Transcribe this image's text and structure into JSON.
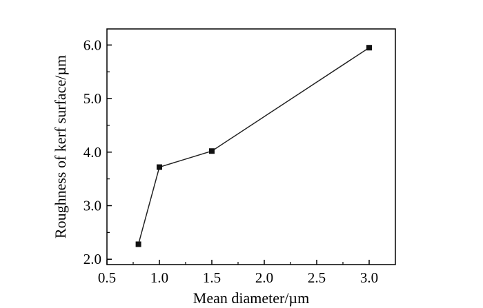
{
  "chart_data": {
    "type": "line",
    "title": "",
    "xlabel": "Mean diameter/µm",
    "ylabel": "Roughness of kerf surface/µm",
    "xlim": [
      0.5,
      3.25
    ],
    "ylim": [
      1.9,
      6.3
    ],
    "xticks": [
      0.5,
      1.0,
      1.5,
      2.0,
      2.5,
      3.0
    ],
    "xtick_labels": [
      "0.5",
      "1.0",
      "1.5",
      "2.0",
      "2.5",
      "3.0"
    ],
    "yticks": [
      2.0,
      3.0,
      4.0,
      5.0,
      6.0
    ],
    "ytick_labels": [
      "2.0",
      "3.0",
      "4.0",
      "5.0",
      "6.0"
    ],
    "grid": false,
    "marker": "square",
    "series": [
      {
        "x": [
          0.8,
          1.0,
          1.5,
          3.0
        ],
        "y": [
          2.28,
          3.72,
          4.02,
          5.95
        ]
      }
    ]
  }
}
